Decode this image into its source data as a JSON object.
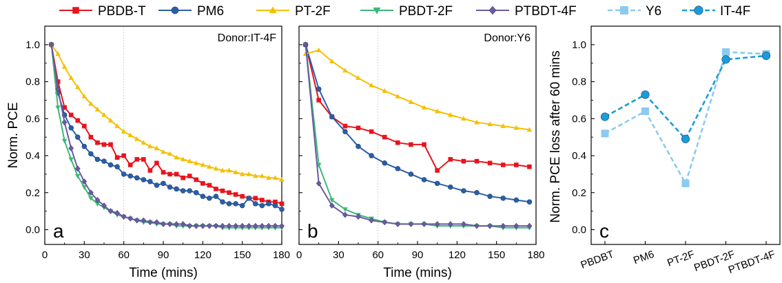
{
  "chart_data": [
    {
      "type": "line",
      "panel_label": "a",
      "annotation": "Donor:IT-4F",
      "xlabel": "Time (mins)",
      "ylabel": "Norm. PCE",
      "xlim": [
        0,
        180
      ],
      "ylim": [
        -0.08,
        1.1
      ],
      "xticks": [
        "0",
        "30",
        "60",
        "90",
        "120",
        "150",
        "180"
      ],
      "yticks": [
        "0.0",
        "0.2",
        "0.4",
        "0.6",
        "0.8",
        "1.0"
      ],
      "reference_line_x": 60,
      "series": [
        {
          "name": "PBDB-T",
          "color": "#e8141c",
          "marker": "square",
          "x": [
            5,
            10,
            15,
            20,
            25,
            30,
            35,
            40,
            45,
            50,
            55,
            60,
            65,
            70,
            75,
            80,
            85,
            90,
            95,
            100,
            105,
            110,
            115,
            120,
            125,
            130,
            135,
            140,
            145,
            150,
            155,
            160,
            165,
            170,
            175,
            180
          ],
          "y": [
            1.0,
            0.8,
            0.66,
            0.62,
            0.59,
            0.56,
            0.5,
            0.47,
            0.46,
            0.46,
            0.39,
            0.4,
            0.35,
            0.38,
            0.38,
            0.32,
            0.36,
            0.31,
            0.3,
            0.3,
            0.28,
            0.29,
            0.27,
            0.25,
            0.24,
            0.22,
            0.21,
            0.2,
            0.19,
            0.18,
            0.17,
            0.17,
            0.16,
            0.15,
            0.15,
            0.14
          ]
        },
        {
          "name": "PM6",
          "color": "#2a5ea8",
          "marker": "circle",
          "x": [
            5,
            10,
            15,
            20,
            25,
            30,
            35,
            40,
            45,
            50,
            55,
            60,
            65,
            70,
            75,
            80,
            85,
            90,
            95,
            100,
            105,
            110,
            115,
            120,
            125,
            130,
            135,
            140,
            145,
            150,
            155,
            160,
            165,
            170,
            175,
            180
          ],
          "y": [
            1.0,
            0.74,
            0.62,
            0.55,
            0.5,
            0.45,
            0.41,
            0.38,
            0.37,
            0.35,
            0.34,
            0.3,
            0.29,
            0.28,
            0.27,
            0.26,
            0.24,
            0.25,
            0.23,
            0.22,
            0.21,
            0.21,
            0.2,
            0.18,
            0.17,
            0.18,
            0.15,
            0.14,
            0.14,
            0.13,
            0.17,
            0.14,
            0.13,
            0.14,
            0.13,
            0.11
          ]
        },
        {
          "name": "PT-2F",
          "color": "#f5c000",
          "marker": "triangle-up",
          "x": [
            5,
            10,
            15,
            20,
            25,
            30,
            35,
            40,
            45,
            50,
            55,
            60,
            65,
            70,
            75,
            80,
            85,
            90,
            95,
            100,
            105,
            110,
            115,
            120,
            125,
            130,
            135,
            140,
            145,
            150,
            155,
            160,
            165,
            170,
            175,
            180
          ],
          "y": [
            1.0,
            0.95,
            0.88,
            0.82,
            0.77,
            0.72,
            0.68,
            0.65,
            0.62,
            0.59,
            0.56,
            0.53,
            0.51,
            0.49,
            0.47,
            0.45,
            0.44,
            0.42,
            0.41,
            0.39,
            0.38,
            0.37,
            0.36,
            0.35,
            0.34,
            0.33,
            0.32,
            0.32,
            0.31,
            0.3,
            0.3,
            0.29,
            0.29,
            0.28,
            0.28,
            0.27
          ]
        },
        {
          "name": "PBDT-2F",
          "color": "#3cb878",
          "marker": "triangle-down",
          "x": [
            5,
            10,
            15,
            20,
            25,
            30,
            35,
            40,
            45,
            50,
            55,
            60,
            65,
            70,
            75,
            80,
            85,
            90,
            95,
            100,
            105,
            110,
            115,
            120,
            125,
            130,
            135,
            140,
            145,
            150,
            155,
            160,
            165,
            170,
            175,
            180
          ],
          "y": [
            1.0,
            0.66,
            0.48,
            0.38,
            0.29,
            0.23,
            0.17,
            0.14,
            0.12,
            0.1,
            0.08,
            0.07,
            0.06,
            0.05,
            0.04,
            0.04,
            0.03,
            0.03,
            0.03,
            0.02,
            0.02,
            0.02,
            0.02,
            0.02,
            0.02,
            0.02,
            0.01,
            0.01,
            0.01,
            0.01,
            0.01,
            0.01,
            0.01,
            0.01,
            0.01,
            0.01
          ]
        },
        {
          "name": "PTBDT-4F",
          "color": "#6a5aa0",
          "marker": "diamond",
          "x": [
            5,
            10,
            15,
            20,
            25,
            30,
            35,
            40,
            45,
            50,
            55,
            60,
            65,
            70,
            75,
            80,
            85,
            90,
            95,
            100,
            105,
            110,
            115,
            120,
            125,
            130,
            135,
            140,
            145,
            150,
            155,
            160,
            165,
            170,
            175,
            180
          ],
          "y": [
            1.0,
            0.76,
            0.58,
            0.44,
            0.33,
            0.26,
            0.2,
            0.16,
            0.13,
            0.1,
            0.09,
            0.07,
            0.06,
            0.05,
            0.05,
            0.04,
            0.04,
            0.03,
            0.03,
            0.03,
            0.03,
            0.02,
            0.02,
            0.02,
            0.02,
            0.02,
            0.02,
            0.02,
            0.02,
            0.02,
            0.02,
            0.02,
            0.02,
            0.02,
            0.02,
            0.02
          ]
        }
      ]
    },
    {
      "type": "line",
      "panel_label": "b",
      "annotation": "Donor:Y6",
      "xlabel": "Time (mins)",
      "xlim": [
        0,
        180
      ],
      "ylim": [
        -0.08,
        1.1
      ],
      "xticks": [
        "0",
        "30",
        "60",
        "90",
        "120",
        "150",
        "180"
      ],
      "reference_line_x": 60,
      "series": [
        {
          "name": "PBDB-T",
          "color": "#e8141c",
          "marker": "square",
          "x": [
            5,
            15,
            25,
            35,
            45,
            55,
            65,
            75,
            85,
            95,
            105,
            115,
            125,
            135,
            145,
            155,
            165,
            175
          ],
          "y": [
            1.0,
            0.7,
            0.61,
            0.56,
            0.55,
            0.53,
            0.5,
            0.47,
            0.46,
            0.46,
            0.32,
            0.38,
            0.37,
            0.37,
            0.36,
            0.35,
            0.35,
            0.34
          ]
        },
        {
          "name": "PM6",
          "color": "#2a5ea8",
          "marker": "circle",
          "x": [
            5,
            15,
            25,
            35,
            45,
            55,
            65,
            75,
            85,
            95,
            105,
            115,
            125,
            135,
            145,
            155,
            165,
            175
          ],
          "y": [
            1.0,
            0.76,
            0.61,
            0.53,
            0.45,
            0.4,
            0.36,
            0.33,
            0.3,
            0.27,
            0.25,
            0.23,
            0.21,
            0.2,
            0.18,
            0.17,
            0.16,
            0.15
          ]
        },
        {
          "name": "PT-2F",
          "color": "#f5c000",
          "marker": "triangle-up",
          "x": [
            5,
            15,
            25,
            35,
            45,
            55,
            65,
            75,
            85,
            95,
            105,
            115,
            125,
            135,
            145,
            155,
            165,
            175
          ],
          "y": [
            0.95,
            0.97,
            0.91,
            0.86,
            0.82,
            0.78,
            0.75,
            0.72,
            0.69,
            0.66,
            0.64,
            0.62,
            0.6,
            0.58,
            0.57,
            0.56,
            0.55,
            0.54
          ]
        },
        {
          "name": "PBDT-2F",
          "color": "#3cb878",
          "marker": "triangle-down",
          "x": [
            5,
            15,
            25,
            35,
            45,
            55,
            65,
            75,
            85,
            95,
            105,
            115,
            125,
            135,
            145,
            155,
            165,
            175
          ],
          "y": [
            1.0,
            0.35,
            0.16,
            0.11,
            0.08,
            0.06,
            0.04,
            0.03,
            0.03,
            0.03,
            0.02,
            0.02,
            0.02,
            0.02,
            0.02,
            0.01,
            0.01,
            0.01
          ]
        },
        {
          "name": "PTBDT-4F",
          "color": "#6a5aa0",
          "marker": "diamond",
          "x": [
            5,
            15,
            25,
            35,
            45,
            55,
            65,
            75,
            85,
            95,
            105,
            115,
            125,
            135,
            145,
            155,
            165,
            175
          ],
          "y": [
            1.0,
            0.25,
            0.13,
            0.08,
            0.07,
            0.05,
            0.04,
            0.03,
            0.03,
            0.03,
            0.03,
            0.03,
            0.03,
            0.02,
            0.02,
            0.02,
            0.02,
            0.02
          ]
        }
      ]
    },
    {
      "type": "line",
      "panel_label": "c",
      "ylabel": "Norm. PCE loss after 60 mins",
      "categories": [
        "PBDBT",
        "PM6",
        "PT-2F",
        "PBDT-2F",
        "PTBDT-4F"
      ],
      "ylim": [
        -0.08,
        1.1
      ],
      "yticks": [
        "0.0",
        "0.2",
        "0.4",
        "0.6",
        "0.8",
        "1.0"
      ],
      "series": [
        {
          "name": "Y6",
          "color": "#8ccaf0",
          "marker": "square",
          "dashed": true,
          "values": [
            0.52,
            0.64,
            0.25,
            0.96,
            0.95
          ]
        },
        {
          "name": "IT-4F",
          "color": "#1a9cd8",
          "marker": "circle",
          "dashed": true,
          "values": [
            0.61,
            0.73,
            0.49,
            0.92,
            0.94
          ]
        }
      ]
    }
  ]
}
